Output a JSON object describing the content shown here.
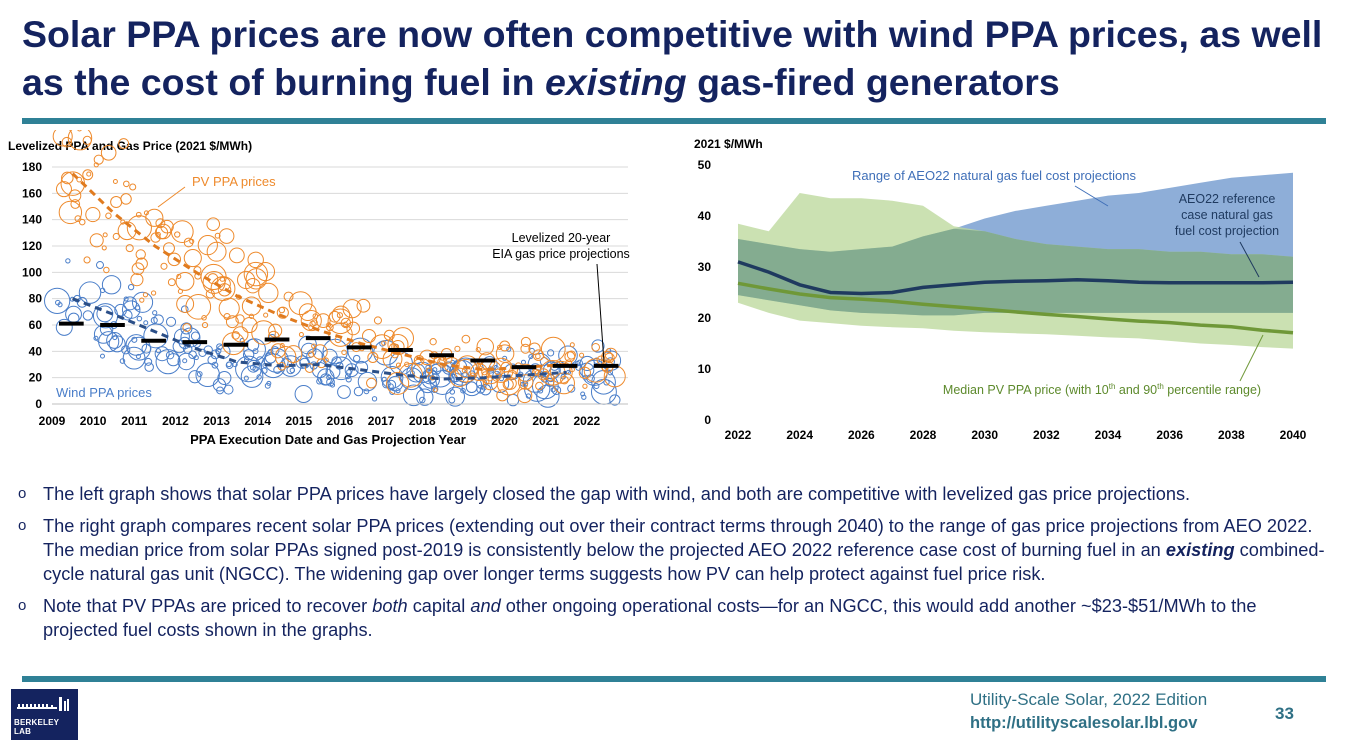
{
  "slide": {
    "title_part1": "Solar PPA prices are now often competitive with wind PPA prices, as well as the cost of burning fuel in",
    "title_em": "existing",
    "title_part2": "gas-fired generators",
    "page_number": "33"
  },
  "footer": {
    "edition": "Utility-Scale Solar, 2022 Edition",
    "url": "http://utilityscalesolar.lbl.gov",
    "logo_text": "BERKELEY LAB"
  },
  "bullets": {
    "b1": "The left graph shows that solar PPA prices have largely closed the gap with wind, and both are competitive with levelized gas price projections.",
    "b2_part1": "The right graph compares recent solar PPA prices (extending out over their contract terms through 2040) to the range of gas price projections from AEO 2022.  The median price from solar PPAs signed post-2019 is consistently below the projected AEO 2022 reference case cost of burning fuel in an",
    "b2_em": "existing",
    "b2_part2": "combined-cycle natural gas unit (NGCC). The widening gap over longer terms suggests how PV can help protect against fuel price risk.",
    "b3_part1": "Note that PV PPAs are priced to recover",
    "b3_em1": "both",
    "b3_part2": "capital",
    "b3_em2": "and",
    "b3_part3": "other ongoing operational costs—for an NGCC, this would add another ~$23-$51/MWh to the projected fuel costs shown in the graphs."
  },
  "colors": {
    "navy": "#14235f",
    "teal": "#2f8196",
    "pv_orange": "#ee8a2c",
    "wind_blue": "#4a7ec9",
    "gas_black": "#000000",
    "range_blue": "#8eaed8",
    "range_green": "#bcd99c",
    "overlap_green": "#84ac90",
    "ref_line": "#1f3a5f",
    "pv_median": "#6f9838"
  },
  "chart_data": [
    {
      "type": "scatter",
      "title": "Levelized PPA and Gas Price (2021 $/MWh)",
      "xlabel": "PPA Execution Date and Gas Projection Year",
      "ylabel": "",
      "xlim": [
        2009,
        2023
      ],
      "ylim": [
        0,
        180
      ],
      "yticks": [
        0,
        20,
        40,
        60,
        80,
        100,
        120,
        140,
        160,
        180
      ],
      "xticks": [
        2009,
        2010,
        2011,
        2012,
        2013,
        2014,
        2015,
        2016,
        2017,
        2018,
        2019,
        2020,
        2021,
        2022
      ],
      "series": [
        {
          "name": "PV PPA prices",
          "kind": "bubbles + dashed trend",
          "trend_x": [
            2009.5,
            2010.5,
            2011.5,
            2012.5,
            2013.5,
            2014.5,
            2015.5,
            2016.5,
            2017.5,
            2018.5,
            2019.5,
            2020.5,
            2021.5
          ],
          "trend_y": [
            175,
            145,
            120,
            100,
            82,
            68,
            56,
            46,
            38,
            30,
            26,
            28,
            30
          ]
        },
        {
          "name": "Wind PPA prices",
          "kind": "bubbles + dashed trend",
          "trend_x": [
            2009.5,
            2010.5,
            2011.5,
            2012.5,
            2013.5,
            2014.5,
            2015.5,
            2016.5,
            2017.5,
            2018.5,
            2019.5,
            2020.5,
            2021.5
          ],
          "trend_y": [
            80,
            68,
            55,
            42,
            32,
            29,
            30,
            26,
            22,
            19,
            20,
            22,
            24
          ]
        },
        {
          "name": "Levelized 20-year EIA gas price projections",
          "kind": "segments",
          "x": [
            2009,
            2010,
            2011,
            2012,
            2013,
            2014,
            2015,
            2016,
            2017,
            2018,
            2019,
            2020,
            2021,
            2022
          ],
          "y": [
            61,
            60,
            48,
            47,
            45,
            49,
            50,
            43,
            41,
            37,
            33,
            28,
            29,
            29
          ]
        }
      ],
      "annotations": {
        "pv_label": "PV PPA prices",
        "wind_label": "Wind PPA prices",
        "gas_label_line1": "Levelized 20-year",
        "gas_label_line2": "EIA gas price projections"
      }
    },
    {
      "type": "area",
      "title": "2021 $/MWh",
      "xlabel": "",
      "ylabel": "2021 $/MWh",
      "xlim": [
        2022,
        2040
      ],
      "ylim": [
        0,
        50
      ],
      "yticks": [
        0,
        10,
        20,
        30,
        40,
        50
      ],
      "xticks": [
        2022,
        2024,
        2026,
        2028,
        2030,
        2032,
        2034,
        2036,
        2038,
        2040
      ],
      "x": [
        2022,
        2023,
        2024,
        2025,
        2026,
        2027,
        2028,
        2029,
        2030,
        2031,
        2032,
        2033,
        2034,
        2035,
        2036,
        2037,
        2038,
        2039,
        2040
      ],
      "series": [
        {
          "name": "Range of AEO22 natural gas fuel cost projections",
          "low": [
            24.5,
            23.5,
            22.5,
            21.5,
            21,
            20.8,
            20.5,
            20.5,
            21,
            21,
            21,
            21,
            21,
            21,
            21,
            21,
            21,
            21,
            21
          ],
          "high": [
            35.5,
            34.5,
            33.5,
            33,
            33.5,
            34,
            36,
            37.5,
            39.5,
            41,
            42,
            43,
            44,
            44.5,
            45.5,
            46.5,
            47.5,
            48,
            48.5
          ]
        },
        {
          "name": "AEO22 reference case natural gas fuel cost projection",
          "values": [
            31,
            29,
            26.5,
            25,
            24.8,
            25,
            26,
            26.5,
            27,
            27.2,
            27.3,
            27.5,
            27.3,
            27,
            26.9,
            26.9,
            26.9,
            26.9,
            27
          ]
        },
        {
          "name": "PV PPA 10th-90th percentile range",
          "low": [
            23,
            21,
            19.5,
            19,
            18.5,
            18.2,
            18,
            17.5,
            17.2,
            17,
            16.8,
            16.5,
            16.2,
            16,
            15.5,
            15,
            14.7,
            14.3,
            14
          ],
          "high": [
            38.5,
            37,
            44.5,
            43.5,
            43.5,
            43,
            42,
            38,
            37,
            35.5,
            34.5,
            34,
            33.5,
            33.5,
            33,
            33,
            32.5,
            32.5,
            32
          ]
        },
        {
          "name": "Median PV PPA price (with 10th and 90th percentile range)",
          "values": [
            26.8,
            25.7,
            24.7,
            24,
            23.7,
            23.3,
            22.7,
            22.2,
            21.7,
            21.2,
            20.7,
            20.3,
            19.8,
            19.4,
            19.1,
            18.6,
            18.3,
            17.6,
            17.1
          ]
        }
      ],
      "annotations": {
        "range_label": "Range of AEO22 natural gas fuel cost projections",
        "ref_line1": "AEO22 reference",
        "ref_line2": "case natural gas",
        "ref_line3": "fuel cost projection",
        "median_pre": "Median PV PPA price (with 10",
        "median_sup1": "th",
        "median_mid": " and 90",
        "median_sup2": "th",
        "median_post": " percentile range)"
      }
    }
  ]
}
